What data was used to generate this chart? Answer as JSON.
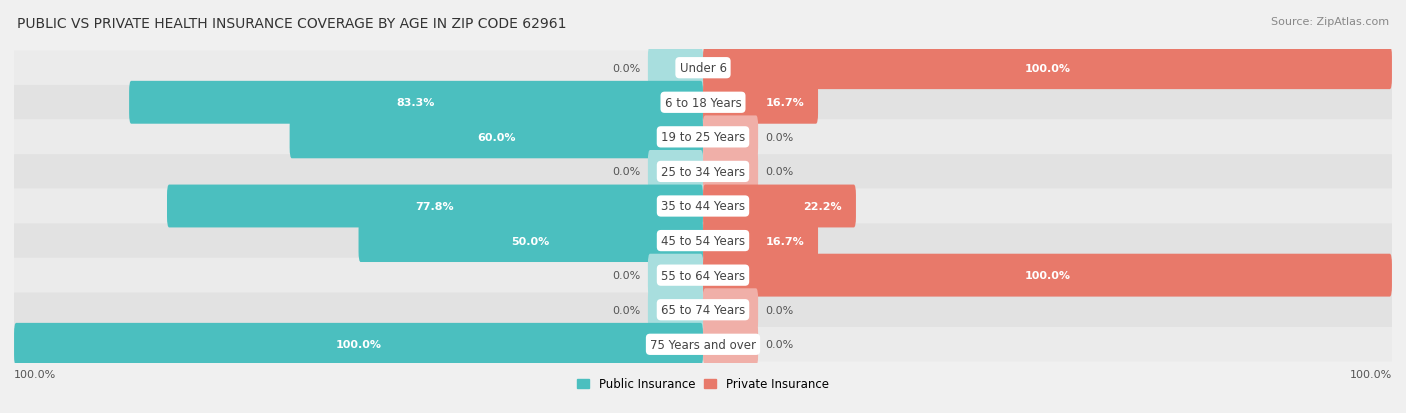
{
  "title": "PUBLIC VS PRIVATE HEALTH INSURANCE COVERAGE BY AGE IN ZIP CODE 62961",
  "source": "Source: ZipAtlas.com",
  "categories": [
    "Under 6",
    "6 to 18 Years",
    "19 to 25 Years",
    "25 to 34 Years",
    "35 to 44 Years",
    "45 to 54 Years",
    "55 to 64 Years",
    "65 to 74 Years",
    "75 Years and over"
  ],
  "public_values": [
    0.0,
    83.3,
    60.0,
    0.0,
    77.8,
    50.0,
    0.0,
    0.0,
    100.0
  ],
  "private_values": [
    100.0,
    16.7,
    0.0,
    0.0,
    22.2,
    16.7,
    100.0,
    0.0,
    0.0
  ],
  "public_color": "#4BBFBF",
  "public_color_light": "#A8DEDE",
  "private_color": "#E8796A",
  "private_color_light": "#F0AFA8",
  "background_color": "#F0F0F0",
  "row_bg_dark": "#E2E2E2",
  "row_bg_light": "#EBEBEB",
  "title_fontsize": 10,
  "source_fontsize": 8,
  "label_fontsize": 8,
  "tick_fontsize": 8,
  "legend_fontsize": 8.5,
  "center_label_color": "#444444",
  "value_color_white": "#FFFFFF",
  "value_color_dark": "#555555",
  "stub_size": 8.0,
  "xlim": 100
}
